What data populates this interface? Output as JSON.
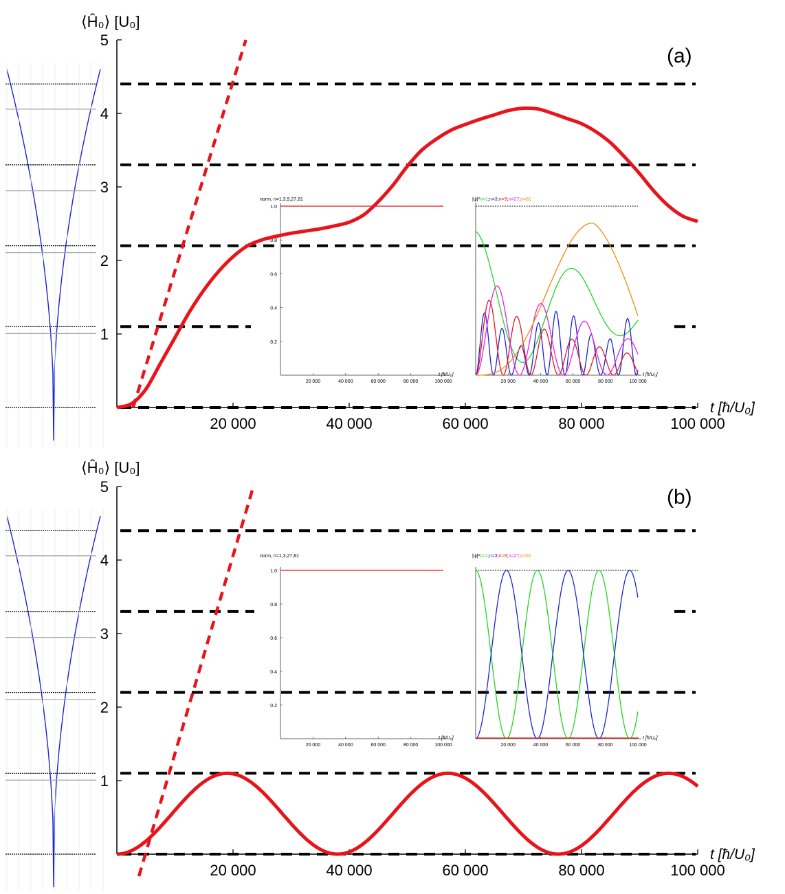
{
  "chart_data": [
    {
      "panel": "(a)",
      "type": "line",
      "y_axis_label": "⟨Ĥ₀⟩ [U₀]",
      "x_axis_label": "t [ħ/U₀]",
      "xlim": [
        0,
        100000
      ],
      "ylim": [
        0,
        5
      ],
      "x_ticks": [
        20000,
        40000,
        60000,
        80000,
        100000
      ],
      "x_tick_labels": [
        "20 000",
        "40 000",
        "60 000",
        "80 000",
        "100 000"
      ],
      "y_ticks": [
        1,
        2,
        3,
        4,
        5
      ],
      "y_tick_labels": [
        "1",
        "2",
        "3",
        "4",
        "5"
      ],
      "level_lines": [
        0,
        1.1,
        2.2,
        3.3,
        4.4
      ],
      "series": [
        {
          "style": "solid",
          "color": "#e8141b",
          "x": [
            0,
            2500,
            5000,
            7500,
            10000,
            12500,
            15000,
            17500,
            20000,
            22500,
            25000,
            27500,
            30000,
            32500,
            35000,
            37500,
            40000,
            42500,
            45000,
            47500,
            50000,
            52500,
            55000,
            57500,
            60000,
            62500,
            65000,
            67500,
            70000,
            72500,
            75000,
            77500,
            80000,
            82500,
            85000,
            87500,
            90000,
            92500,
            95000,
            97500,
            100000
          ],
          "y": [
            0,
            0.05,
            0.25,
            0.6,
            0.95,
            1.3,
            1.6,
            1.85,
            2.05,
            2.2,
            2.28,
            2.33,
            2.37,
            2.4,
            2.43,
            2.47,
            2.52,
            2.62,
            2.8,
            3.02,
            3.28,
            3.5,
            3.65,
            3.77,
            3.85,
            3.92,
            3.98,
            4.04,
            4.07,
            4.06,
            4.0,
            3.93,
            3.86,
            3.75,
            3.6,
            3.4,
            3.18,
            2.94,
            2.74,
            2.6,
            2.53
          ]
        },
        {
          "style": "dashed",
          "color": "#e8141b",
          "x": [
            2800,
            22200
          ],
          "y": [
            0,
            5
          ]
        }
      ],
      "insets": [
        {
          "title": "norm, n=1,3,9,27,81",
          "x_label": "t [ħ/U₀]",
          "y_tick_labels": [
            "0.2",
            "0.4",
            "0.6",
            "0.8",
            "1.0"
          ],
          "x_tick_labels": [
            "20 000",
            "40 000",
            "60 000",
            "80 000",
            "100 000"
          ],
          "values_note": "constant 1.0"
        },
        {
          "title_parts": [
            "|ψ|²",
            "n=1",
            ";",
            "n=3",
            ";",
            "n=9",
            ";",
            "n=27",
            ";",
            "n=81"
          ],
          "x_label": "t [ħ/U₀]",
          "x_tick_labels": [
            "20 000",
            "40 000",
            "60 000",
            "80 000",
            "100 000"
          ]
        }
      ]
    },
    {
      "panel": "(b)",
      "type": "line",
      "y_axis_label": "⟨Ĥ₀⟩ [U₀]",
      "x_axis_label": "t [ħ/U₀]",
      "xlim": [
        0,
        100000
      ],
      "ylim": [
        0,
        5
      ],
      "x_ticks": [
        20000,
        40000,
        60000,
        80000,
        100000
      ],
      "x_tick_labels": [
        "20 000",
        "40 000",
        "60 000",
        "80 000",
        "100 000"
      ],
      "y_ticks": [
        1,
        2,
        3,
        4,
        5
      ],
      "y_tick_labels": [
        "1",
        "2",
        "3",
        "4",
        "5"
      ],
      "level_lines": [
        0,
        1.1,
        2.2,
        3.3,
        4.4
      ],
      "series": [
        {
          "style": "solid",
          "color": "#e8141b",
          "formula": "1.1*sin^2(pi*t/38000)",
          "amplitude": 1.1,
          "period": 38000
        },
        {
          "style": "dashed",
          "color": "#e8141b",
          "x": [
            3800,
            23500
          ],
          "y": [
            -0.3,
            5
          ]
        }
      ],
      "insets": [
        {
          "title": "norm, n=1,3,27,81",
          "x_label": "t [ħ/U₀]",
          "y_tick_labels": [
            "0.2",
            "0.4",
            "0.6",
            "0.8",
            "1.0"
          ],
          "x_tick_labels": [
            "20 000",
            "40 000",
            "60 000",
            "80 000",
            "100 000"
          ],
          "values_note": "constant 1.0"
        },
        {
          "title_parts": [
            "|ψ|²",
            "n=1",
            ";",
            "n=3",
            ";",
            "n=9",
            ";",
            "n=27",
            ";",
            "n=81"
          ],
          "x_label": "t [ħ/U₀]",
          "x_tick_labels": [
            "20 000",
            "40 000",
            "60 000",
            "80 000",
            "100 000"
          ]
        }
      ]
    }
  ],
  "colors": {
    "energy": "#e8141b",
    "potential": "#1a23d6",
    "n1": "#1fd61f",
    "n3": "#1a23d6",
    "n9": "#e8141b",
    "n27": "#e81ee8",
    "n81": "#f08a0a"
  }
}
